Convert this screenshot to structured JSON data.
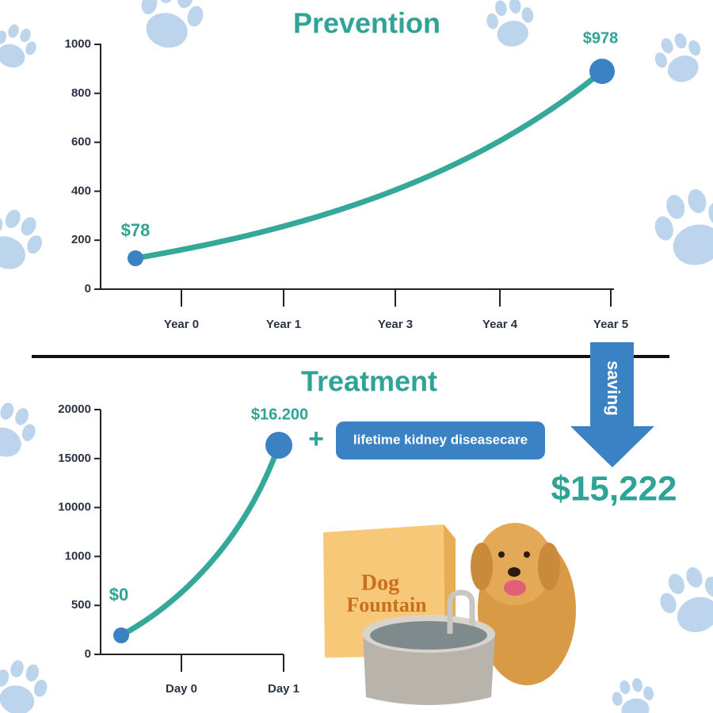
{
  "prevention": {
    "title": "Prevention",
    "yticks": [
      "0",
      "200",
      "400",
      "600",
      "800",
      "1000"
    ],
    "xticks": [
      "Year 0",
      "Year 1",
      "Year 3",
      "Year 4",
      "Year 5"
    ],
    "start_label": "$78",
    "end_label": "$978"
  },
  "treatment": {
    "title": "Treatment",
    "yticks": [
      "0",
      "500",
      "1000",
      "10000",
      "15000",
      "20000"
    ],
    "xticks": [
      "Day 0",
      "Day 1"
    ],
    "start_label": "$0",
    "end_label": "$16.200",
    "plus": "+",
    "note": "lifetime kidney diseasecare"
  },
  "saving": {
    "label": "saving",
    "amount": "$15,222"
  },
  "product": {
    "brand": [
      "Dog",
      "Fountain"
    ]
  }
}
